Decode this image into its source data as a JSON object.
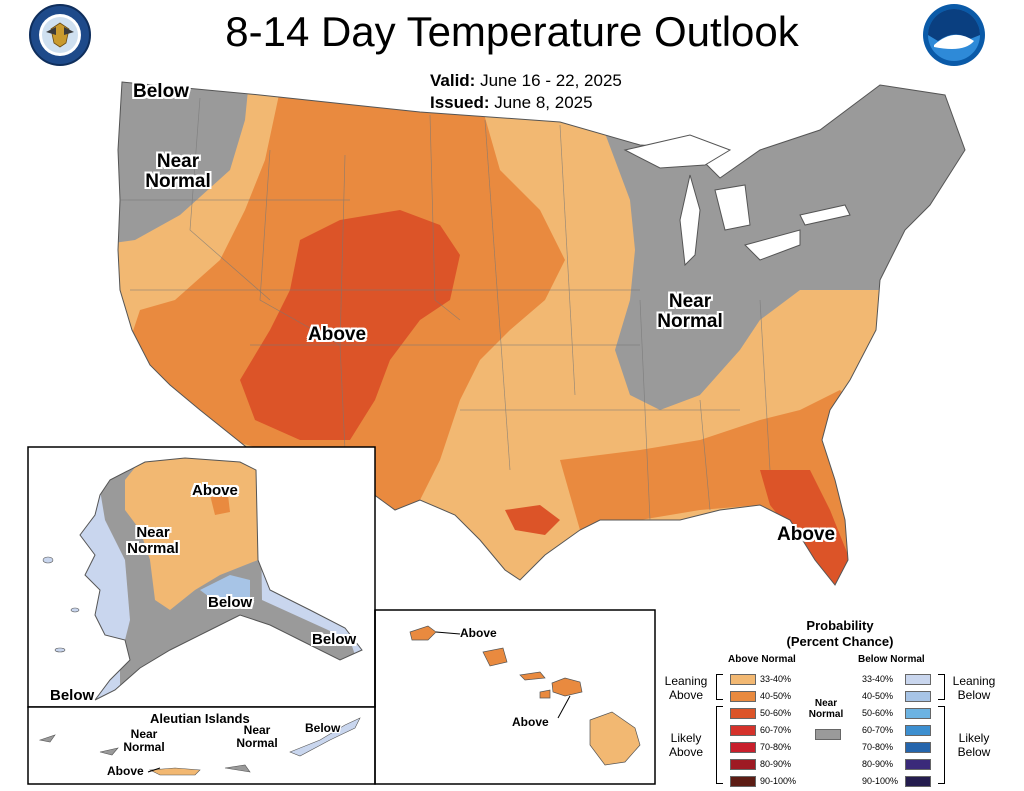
{
  "title": "8-14 Day Temperature Outlook",
  "valid_label": "Valid:",
  "valid_value": "June 16 - 22, 2025",
  "issued_label": "Issued:",
  "issued_value": "June 8, 2025",
  "labels": {
    "conus_below": "Below",
    "conus_near_nw": "Near Normal",
    "conus_above_sw": "Above",
    "conus_near_ov": "Near Normal",
    "conus_above_fl": "Above",
    "ak_above": "Above",
    "ak_near": "Near Normal",
    "ak_below1": "Below",
    "ak_below2": "Below",
    "ak_below3": "Below",
    "aleutian_title": "Aleutian Islands",
    "al_near1": "Near Normal",
    "al_near2": "Near Normal",
    "al_below": "Below",
    "al_above": "Above",
    "hi_above1": "Above",
    "hi_above2": "Above"
  },
  "legend": {
    "title_line1": "Probability",
    "title_line2": "(Percent Chance)",
    "above_header": "Above Normal",
    "below_header": "Below Normal",
    "near_normal": "Near Normal",
    "leaning_above": "Leaning Above",
    "likely_above": "Likely Above",
    "leaning_below": "Leaning Below",
    "likely_below": "Likely Below",
    "above_items": [
      {
        "range": "33-40%",
        "color": "#f2b872"
      },
      {
        "range": "40-50%",
        "color": "#e98a3f"
      },
      {
        "range": "50-60%",
        "color": "#dc5428"
      },
      {
        "range": "60-70%",
        "color": "#d5322b"
      },
      {
        "range": "70-80%",
        "color": "#c81f2c"
      },
      {
        "range": "80-90%",
        "color": "#9e1a23"
      },
      {
        "range": "90-100%",
        "color": "#5c1c14"
      }
    ],
    "below_items": [
      {
        "range": "33-40%",
        "color": "#c9d6ee"
      },
      {
        "range": "40-50%",
        "color": "#a7c4e6"
      },
      {
        "range": "50-60%",
        "color": "#6cb3e2"
      },
      {
        "range": "60-70%",
        "color": "#3d8fd0"
      },
      {
        "range": "70-80%",
        "color": "#2565ac"
      },
      {
        "range": "80-90%",
        "color": "#3a2a7a"
      },
      {
        "range": "90-100%",
        "color": "#241c4e"
      }
    ],
    "near_color": "#9a9a9a"
  },
  "colors": {
    "near": "#9a9a9a",
    "a33": "#f2b872",
    "a40": "#e98a3f",
    "a50": "#dc5428",
    "b33": "#c9d6ee",
    "b40": "#a7c4e6"
  }
}
